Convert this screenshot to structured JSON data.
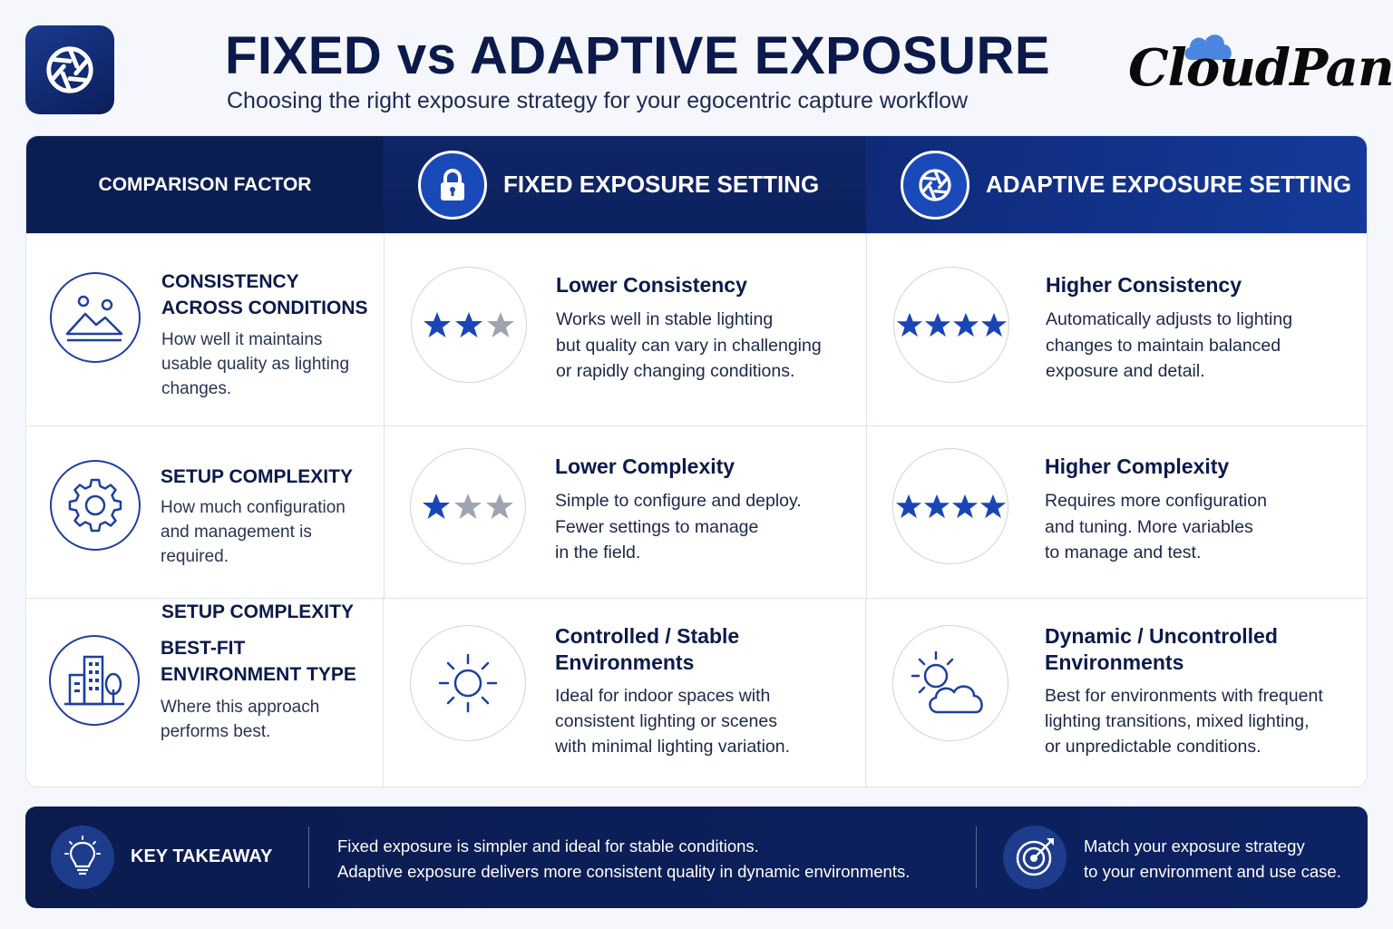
{
  "header": {
    "title": "FIXED vs ADAPTIVE EXPOSURE",
    "subtitle": "Choosing the right exposure strategy for your egocentric capture workflow",
    "app_icon": "aperture-icon",
    "brand": "CloudPano"
  },
  "table": {
    "columns": [
      {
        "label": "COMPARISON FACTOR"
      },
      {
        "label": "FIXED EXPOSURE SETTING",
        "icon": "lock-icon"
      },
      {
        "label": "ADAPTIVE EXPOSURE SETTING",
        "icon": "aperture-icon"
      }
    ],
    "rows": [
      {
        "factor": {
          "title_1": "CONSISTENCY",
          "title_2": "ACROSS CONDITIONS",
          "desc_1": "How well it maintains",
          "desc_2": "usable quality as lighting",
          "desc_3": "changes.",
          "icon": "mountains-icon"
        },
        "fixed": {
          "rating": 2,
          "max": 3,
          "title": "Lower Consistency",
          "desc_1": "Works well in stable lighting",
          "desc_2": "but quality can vary in challenging",
          "desc_3": "or rapidly changing conditions."
        },
        "adaptive": {
          "rating": 4,
          "max": 4,
          "title": "Higher Consistency",
          "desc_1": "Automatically adjusts to lighting",
          "desc_2": "changes to maintain balanced",
          "desc_3": "exposure and detail."
        }
      },
      {
        "factor": {
          "title_1": "SETUP COMPLEXITY",
          "desc_1": "How much configuration",
          "desc_2": "and management is",
          "desc_3": "required.",
          "icon": "gear-icon"
        },
        "fixed": {
          "rating": 1,
          "max": 3,
          "title": "Lower Complexity",
          "desc_1": "Simple to configure and deploy.",
          "desc_2": "Fewer settings to manage",
          "desc_3": "in the field."
        },
        "adaptive": {
          "rating": 4,
          "max": 4,
          "title": "Higher Complexity",
          "desc_1": "Requires more configuration",
          "desc_2": "and tuning. More variables",
          "desc_3": "to manage and test."
        }
      },
      {
        "factor": {
          "title_1": "BEST-FIT",
          "title_2": "ENVIRONMENT TYPE",
          "desc_1": "Where this approach",
          "desc_2": "performs best.",
          "icon": "city-icon"
        },
        "fixed": {
          "icon": "sun-icon",
          "title_1": "Controlled / Stable",
          "title_2": "Environments",
          "desc_1": "Ideal for indoor spaces with",
          "desc_2": "consistent lighting or scenes",
          "desc_3": "with minimal lighting variation."
        },
        "adaptive": {
          "icon": "sun-cloud-icon",
          "title_1": "Dynamic / Uncontrolled",
          "title_2": "Environments",
          "desc_1": "Best for environments with frequent",
          "desc_2": "lighting transitions, mixed lighting,",
          "desc_3": "or unpredictable conditions."
        }
      }
    ]
  },
  "footer": {
    "label": "KEY TAKEAWAY",
    "text_1": "Fixed exposure is simpler and ideal for stable conditions.",
    "text_2": "Adaptive exposure delivers more consistent quality in dynamic environments.",
    "text2_1": "Match your exposure strategy",
    "text2_2": "to your environment and use case.",
    "icons": [
      "lightbulb-icon",
      "target-icon"
    ]
  },
  "colors": {
    "navy": "#0b1e52",
    "accent_blue": "#1a49b8",
    "star_on": "#1a45b5",
    "star_off": "#9ea4b0"
  }
}
